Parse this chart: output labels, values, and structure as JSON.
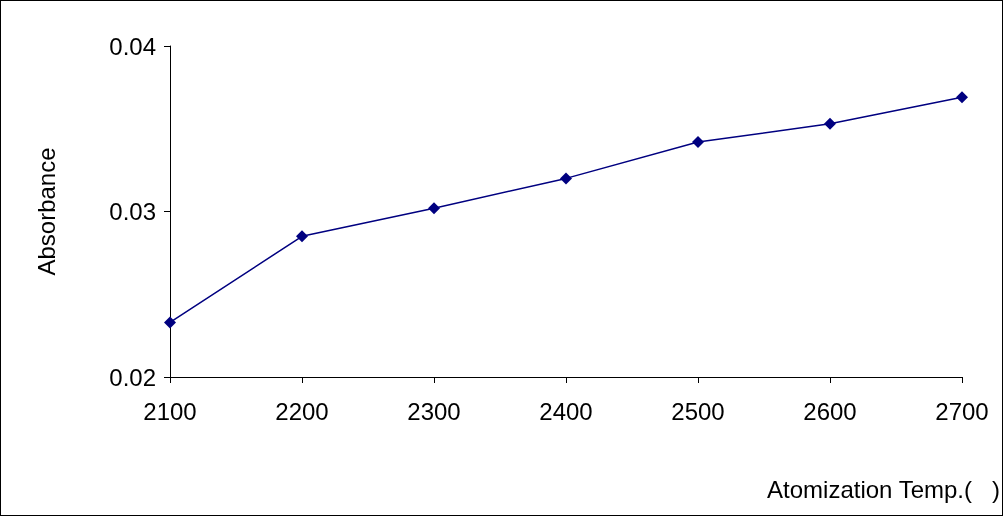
{
  "chart_data": {
    "type": "line",
    "xlabel": "Atomization Temp.(   )",
    "ylabel": "Absorbance",
    "x": [
      2100,
      2200,
      2300,
      2400,
      2500,
      2600,
      2700
    ],
    "series": [
      {
        "color": "#000080",
        "values": [
          0.0233,
          0.0285,
          0.0302,
          0.032,
          0.0342,
          0.0353,
          0.0369
        ]
      }
    ],
    "xlim": [
      2100,
      2700
    ],
    "xticks": [
      2100,
      2200,
      2300,
      2400,
      2500,
      2600,
      2700
    ],
    "ylim": [
      0.02,
      0.04
    ],
    "yticks": [
      0.02,
      0.03,
      0.04
    ],
    "grid": false,
    "marker": "diamond",
    "line_style": "solid"
  }
}
